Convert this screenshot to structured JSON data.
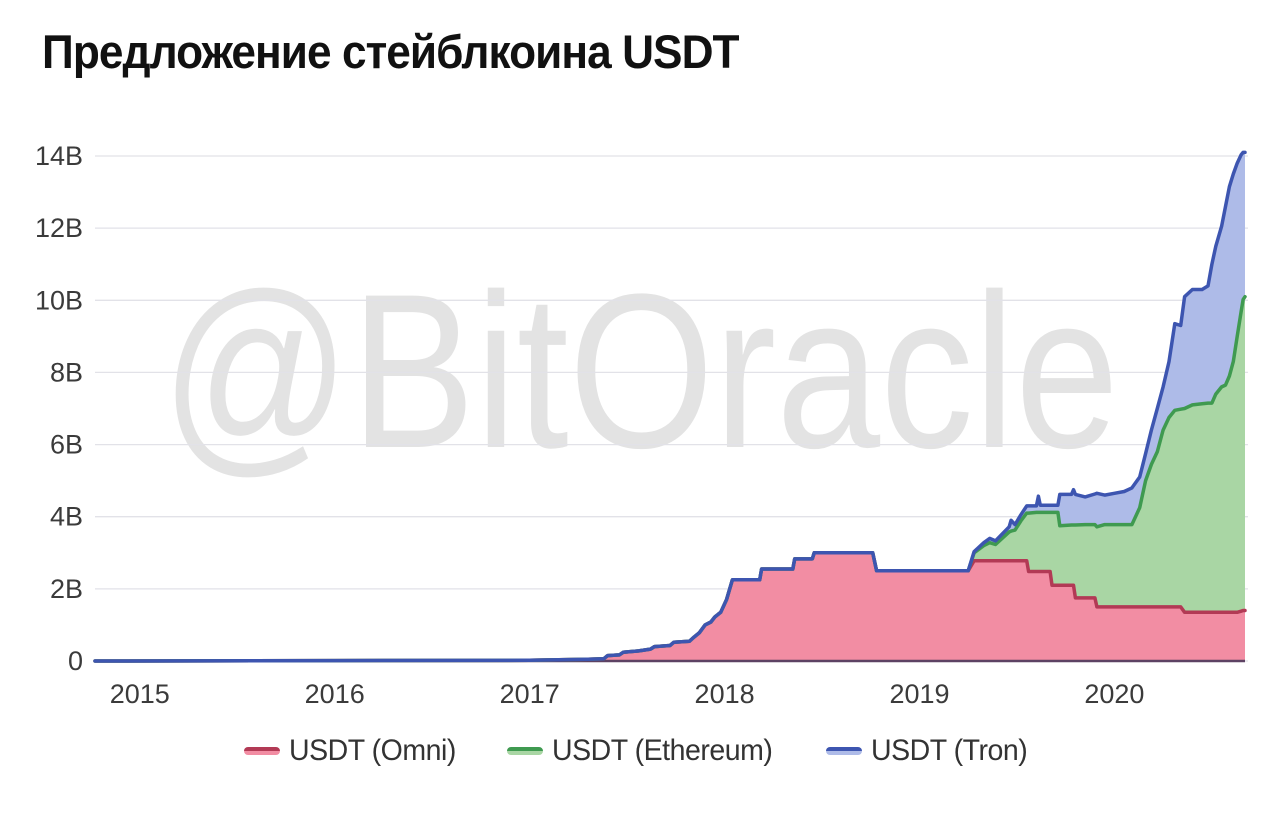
{
  "chart_data": {
    "type": "area",
    "stacked": true,
    "title": "Предложение стейблкоина USDT",
    "watermark": "@BitOracle",
    "legend_position": "bottom",
    "grid": "horizontal",
    "xlim": [
      2014.77,
      2020.67
    ],
    "ylim": [
      0,
      14
    ],
    "x_ticks": [
      {
        "year": 2015,
        "label": "2015"
      },
      {
        "year": 2016,
        "label": "2016"
      },
      {
        "year": 2017,
        "label": "2017"
      },
      {
        "year": 2018,
        "label": "2018"
      },
      {
        "year": 2019,
        "label": "2019"
      },
      {
        "year": 2020,
        "label": "2020"
      }
    ],
    "y_ticks": [
      {
        "value": 0,
        "label": "0"
      },
      {
        "value": 2,
        "label": "2B"
      },
      {
        "value": 4,
        "label": "4B"
      },
      {
        "value": 6,
        "label": "6B"
      },
      {
        "value": 8,
        "label": "8B"
      },
      {
        "value": 10,
        "label": "10B"
      },
      {
        "value": 12,
        "label": "12B"
      },
      {
        "value": 14,
        "label": "14B"
      }
    ],
    "colors": {
      "grid": "#e2e2e8",
      "axis_text": "#3b3b3b",
      "baseline": "#5d4263",
      "watermark": "#e3e3e3",
      "title": "#111111"
    },
    "x": [
      2014.77,
      2016.0,
      2017.0,
      2017.3,
      2017.38,
      2017.4,
      2017.46,
      2017.48,
      2017.56,
      2017.62,
      2017.64,
      2017.72,
      2017.74,
      2017.82,
      2017.84,
      2017.87,
      2017.9,
      2017.93,
      2017.95,
      2017.98,
      2018.01,
      2018.04,
      2018.18,
      2018.19,
      2018.35,
      2018.36,
      2018.45,
      2018.46,
      2018.76,
      2018.78,
      2019.25,
      2019.28,
      2019.33,
      2019.36,
      2019.39,
      2019.43,
      2019.46,
      2019.47,
      2019.49,
      2019.52,
      2019.55,
      2019.56,
      2019.6,
      2019.61,
      2019.62,
      2019.67,
      2019.68,
      2019.71,
      2019.72,
      2019.78,
      2019.79,
      2019.8,
      2019.85,
      2019.9,
      2019.91,
      2019.95,
      2020.0,
      2020.05,
      2020.09,
      2020.13,
      2020.16,
      2020.19,
      2020.22,
      2020.25,
      2020.28,
      2020.31,
      2020.34,
      2020.36,
      2020.4,
      2020.45,
      2020.48,
      2020.5,
      2020.52,
      2020.55,
      2020.57,
      2020.59,
      2020.61,
      2020.63,
      2020.65,
      2020.66,
      2020.67
    ],
    "series": [
      {
        "name": "USDT (Omni)",
        "line_color": "#b23a55",
        "fill_color": "#f28da3",
        "values": [
          0,
          0.01,
          0.02,
          0.05,
          0.06,
          0.15,
          0.17,
          0.24,
          0.28,
          0.33,
          0.4,
          0.43,
          0.52,
          0.55,
          0.65,
          0.78,
          1.0,
          1.08,
          1.22,
          1.35,
          1.7,
          2.25,
          2.25,
          2.55,
          2.55,
          2.83,
          2.83,
          3.0,
          3.0,
          2.5,
          2.5,
          2.78,
          2.78,
          2.78,
          2.78,
          2.78,
          2.78,
          2.78,
          2.78,
          2.78,
          2.78,
          2.48,
          2.48,
          2.48,
          2.48,
          2.48,
          2.1,
          2.1,
          2.1,
          2.1,
          2.1,
          1.75,
          1.75,
          1.75,
          1.5,
          1.5,
          1.5,
          1.5,
          1.5,
          1.5,
          1.5,
          1.5,
          1.5,
          1.5,
          1.5,
          1.5,
          1.5,
          1.35,
          1.35,
          1.35,
          1.35,
          1.35,
          1.35,
          1.35,
          1.35,
          1.35,
          1.35,
          1.35,
          1.38,
          1.4,
          1.4
        ]
      },
      {
        "name": "USDT (Ethereum)",
        "line_color": "#3f9a50",
        "fill_color": "#a9d6a4",
        "values": [
          0,
          0,
          0,
          0,
          0,
          0,
          0,
          0,
          0,
          0,
          0,
          0,
          0,
          0,
          0,
          0,
          0,
          0,
          0,
          0,
          0,
          0,
          0,
          0,
          0,
          0,
          0,
          0,
          0,
          0,
          0,
          0.22,
          0.42,
          0.5,
          0.45,
          0.65,
          0.8,
          0.82,
          0.85,
          1.1,
          1.32,
          1.62,
          1.64,
          1.64,
          1.64,
          1.64,
          2.02,
          2.02,
          1.65,
          1.67,
          1.67,
          2.02,
          2.03,
          2.03,
          2.22,
          2.28,
          2.28,
          2.28,
          2.28,
          2.75,
          3.5,
          3.95,
          4.3,
          4.9,
          5.25,
          5.45,
          5.48,
          5.65,
          5.75,
          5.78,
          5.8,
          5.8,
          6.05,
          6.25,
          6.3,
          6.55,
          6.95,
          7.65,
          8.3,
          8.62,
          8.7
        ]
      },
      {
        "name": "USDT (Tron)",
        "line_color": "#3d55b0",
        "fill_color": "#aebbe8",
        "values": [
          0,
          0,
          0,
          0,
          0,
          0,
          0,
          0,
          0,
          0,
          0,
          0,
          0,
          0,
          0,
          0,
          0,
          0,
          0,
          0,
          0,
          0,
          0,
          0,
          0,
          0,
          0,
          0,
          0,
          0,
          0,
          0.03,
          0.08,
          0.12,
          0.1,
          0.12,
          0.14,
          0.3,
          0.15,
          0.17,
          0.2,
          0.2,
          0.18,
          0.45,
          0.2,
          0.2,
          0.2,
          0.2,
          0.87,
          0.85,
          0.98,
          0.85,
          0.77,
          0.85,
          0.93,
          0.82,
          0.87,
          0.92,
          1.02,
          0.85,
          0.75,
          0.95,
          1.2,
          1.2,
          1.55,
          2.4,
          2.32,
          3.1,
          3.2,
          3.17,
          3.25,
          3.85,
          4.1,
          4.45,
          4.95,
          5.25,
          5.2,
          4.8,
          4.35,
          4.08,
          4.0
        ]
      }
    ]
  }
}
